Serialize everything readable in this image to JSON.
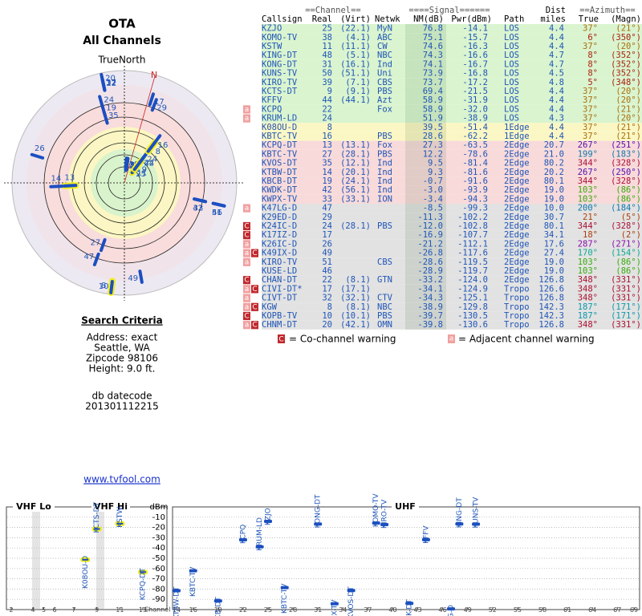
{
  "header": {
    "title": "OTA",
    "subtitle": "All Channels"
  },
  "polar": {
    "label": "TrueNorth",
    "north": "N",
    "nm_lim": [
      80,
      -45
    ]
  },
  "search": {
    "title": "Search Criteria",
    "lines": [
      "Address: exact",
      "Seattle, WA",
      "Zipcode 98106",
      "Height: 9.0 ft."
    ],
    "datecode_label": "db datecode",
    "datecode": "201301112215"
  },
  "link": "www.tvfool.com",
  "table": {
    "group_headers": {
      "channel": "==Channel==",
      "signal": "====Signal======",
      "dist": "Dist",
      "azimuth": "==Azimuth=="
    },
    "columns": {
      "callsign": "Callsign",
      "real": "Real",
      "virt": "(Virt)",
      "netwk": "Netwk",
      "nm": "NM(dB)",
      "pwr": "Pwr(dBm)",
      "path": "Path",
      "miles": "miles",
      "true": "True",
      "magn": "(Magn)"
    },
    "rows": [
      {
        "callsign": "KZJO",
        "real": 25,
        "virt": "(22.1)",
        "netwk": "MyN",
        "nm": 76.8,
        "pwr": -14.1,
        "path": "LOS",
        "miles": 4.4,
        "true": {
          "value": 37,
          "label": "37°"
        },
        "magn": "(21°)",
        "bg": "#d9f4cf"
      },
      {
        "callsign": "KOMO-TV",
        "real": 38,
        "virt": "(4.1)",
        "netwk": "ABC",
        "nm": 75.1,
        "pwr": -15.7,
        "path": "LOS",
        "miles": 4.4,
        "true": {
          "value": 6,
          "label": "6°"
        },
        "magn": "(350°)",
        "bg": "#d9f4cf"
      },
      {
        "callsign": "KSTW",
        "real": 11,
        "virt": "(11.1)",
        "netwk": "CW",
        "nm": 74.6,
        "pwr": -16.3,
        "path": "LOS",
        "miles": 4.4,
        "true": {
          "value": 37,
          "label": "37°"
        },
        "magn": "(20°)",
        "bg": "#d9f4cf"
      },
      {
        "callsign": "KING-DT",
        "real": 48,
        "virt": "(5.1)",
        "netwk": "NBC",
        "nm": 74.3,
        "pwr": -16.6,
        "path": "LOS",
        "miles": 4.7,
        "true": {
          "value": 8,
          "label": "8°"
        },
        "magn": "(352°)",
        "bg": "#d9f4cf"
      },
      {
        "callsign": "KONG-DT",
        "real": 31,
        "virt": "(16.1)",
        "netwk": "Ind",
        "nm": 74.1,
        "pwr": -16.7,
        "path": "LOS",
        "miles": 4.7,
        "true": {
          "value": 8,
          "label": "8°"
        },
        "magn": "(352°)",
        "bg": "#d9f4cf"
      },
      {
        "callsign": "KUNS-TV",
        "real": 50,
        "virt": "(51.1)",
        "netwk": "Uni",
        "nm": 73.9,
        "pwr": -16.8,
        "path": "LOS",
        "miles": 4.5,
        "true": {
          "value": 8,
          "label": "8°"
        },
        "magn": "(352°)",
        "bg": "#d9f4cf"
      },
      {
        "callsign": "KIRO-TV",
        "real": 39,
        "virt": "(7.1)",
        "netwk": "CBS",
        "nm": 73.7,
        "pwr": -17.2,
        "path": "LOS",
        "miles": 4.8,
        "true": {
          "value": 5,
          "label": "5°"
        },
        "magn": "(348°)",
        "bg": "#d9f4cf"
      },
      {
        "callsign": "KCTS-DT",
        "real": 9,
        "virt": "(9.1)",
        "netwk": "PBS",
        "nm": 69.4,
        "pwr": -21.5,
        "path": "LOS",
        "miles": 4.4,
        "true": {
          "value": 37,
          "label": "37°"
        },
        "magn": "(20°)",
        "bg": "#d9f4cf"
      },
      {
        "callsign": "KFFV",
        "real": 44,
        "virt": "(44.1)",
        "netwk": "Azt",
        "nm": 58.9,
        "pwr": -31.9,
        "path": "LOS",
        "miles": 4.4,
        "true": {
          "value": 37,
          "label": "37°"
        },
        "magn": "(20°)",
        "bg": "#d9f4cf"
      },
      {
        "callsign": "KCPQ",
        "real": 22,
        "netwk": "Fox",
        "nm": 58.9,
        "pwr": {
          "value": -32,
          "label": "-32.0"
        },
        "path": "LOS",
        "miles": 4.4,
        "true": {
          "value": 37,
          "label": "37°"
        },
        "magn": "(21°)",
        "bg": "#d9f4cf",
        "warn": [
          "a"
        ]
      },
      {
        "callsign": "KRUM-LD",
        "real": 24,
        "nm": 51.9,
        "pwr": -38.9,
        "path": "LOS",
        "miles": 4.3,
        "true": {
          "value": 37,
          "label": "37°"
        },
        "magn": "(20°)",
        "bg": "#d9f4cf",
        "warn": [
          "a"
        ]
      },
      {
        "callsign": "K08OU-D",
        "real": 8,
        "nm": 39.5,
        "pwr": -51.4,
        "path": "1Edge",
        "miles": 4.4,
        "true": {
          "value": 37,
          "label": "37°"
        },
        "magn": "(21°)",
        "bg": "#fbf7c4"
      },
      {
        "callsign": "KBTC-TV",
        "real": 16,
        "netwk": "PBS",
        "nm": 28.6,
        "pwr": -62.2,
        "path": "1Edge",
        "miles": 4.4,
        "true": {
          "value": 37,
          "label": "37°"
        },
        "magn": "(21°)",
        "bg": "#fbf7c4"
      },
      {
        "callsign": "KCPQ-DT",
        "real": 13,
        "virt": "(13.1)",
        "netwk": "Fox",
        "nm": 27.3,
        "pwr": -63.5,
        "path": "2Edge",
        "miles": 20.7,
        "true": {
          "value": 267,
          "label": "267°"
        },
        "magn": "(251°)",
        "bg": "#f8dada"
      },
      {
        "callsign": "KBTC-TV",
        "real": 27,
        "virt": "(28.1)",
        "netwk": "PBS",
        "nm": 12.2,
        "pwr": -78.6,
        "path": "2Edge",
        "miles": {
          "value": 21,
          "label": "21.0"
        },
        "true": {
          "value": 199,
          "label": "199°"
        },
        "magn": "(183°)",
        "bg": "#f8dada"
      },
      {
        "callsign": "KVOS-DT",
        "real": 35,
        "virt": "(12.1)",
        "netwk": "Ind",
        "nm": 9.5,
        "pwr": -81.4,
        "path": "2Edge",
        "miles": 80.2,
        "true": {
          "value": 344,
          "label": "344°"
        },
        "magn": "(328°)",
        "bg": "#f8dada"
      },
      {
        "callsign": "KTBW-DT",
        "real": 14,
        "virt": "(20.1)",
        "netwk": "Ind",
        "nm": 9.3,
        "pwr": -81.6,
        "path": "2Edge",
        "miles": 20.2,
        "true": {
          "value": 267,
          "label": "267°"
        },
        "magn": "(250°)",
        "bg": "#f8dada"
      },
      {
        "callsign": "KBCB-DT",
        "real": 19,
        "virt": "(24.1)",
        "netwk": "Ind",
        "nm": -0.7,
        "pwr": -91.6,
        "path": "2Edge",
        "miles": 80.1,
        "true": {
          "value": 344,
          "label": "344°"
        },
        "magn": "(328°)",
        "bg": "#f8dada"
      },
      {
        "callsign": "KWDK-DT",
        "real": 42,
        "virt": "(56.1)",
        "netwk": "Ind",
        "nm": {
          "value": -3,
          "label": "-3.0"
        },
        "pwr": -93.9,
        "path": "2Edge",
        "miles": {
          "value": 19,
          "label": "19.0"
        },
        "true": {
          "value": 103,
          "label": "103°"
        },
        "magn": "(86°)",
        "bg": "#f8dada"
      },
      {
        "callsign": "KWPX-TV",
        "real": 33,
        "virt": "(33.1)",
        "netwk": "ION",
        "nm": -3.4,
        "pwr": -94.3,
        "path": "2Edge",
        "miles": {
          "value": 19,
          "label": "19.0"
        },
        "true": {
          "value": 103,
          "label": "103°"
        },
        "magn": "(86°)",
        "bg": "#f8dada"
      },
      {
        "callsign": "K47LG-D",
        "real": 47,
        "nm": -8.5,
        "pwr": -99.3,
        "path": "2Edge",
        "miles": {
          "value": 10,
          "label": "10.0"
        },
        "true": {
          "value": 200,
          "label": "200°"
        },
        "magn": "(184°)",
        "bg": "#e2e2e2",
        "warn": [
          "a"
        ]
      },
      {
        "callsign": "K29ED-D",
        "real": 29,
        "nm": -11.3,
        "pwr": -102.2,
        "path": "2Edge",
        "miles": 30.7,
        "true": {
          "value": 21,
          "label": "21°"
        },
        "magn": "(5°)",
        "bg": "#e2e2e2"
      },
      {
        "callsign": "K24IC-D",
        "real": 24,
        "virt": "(28.1)",
        "netwk": "PBS",
        "nm": {
          "value": -12,
          "label": "-12.0"
        },
        "pwr": -102.8,
        "path": "2Edge",
        "miles": 80.1,
        "true": {
          "value": 344,
          "label": "344°"
        },
        "magn": "(328°)",
        "bg": "#e2e2e2",
        "warn": [
          "C"
        ]
      },
      {
        "callsign": "K17IZ-D",
        "real": 17,
        "nm": -16.9,
        "pwr": -107.7,
        "path": "2Edge",
        "miles": 34.1,
        "true": {
          "value": 18,
          "label": "18°"
        },
        "magn": "(2°)",
        "bg": "#e2e2e2",
        "warn": [
          "C"
        ]
      },
      {
        "callsign": "K26IC-D",
        "real": 26,
        "nm": -21.2,
        "pwr": -112.1,
        "path": "2Edge",
        "miles": 17.6,
        "true": {
          "value": 287,
          "label": "287°"
        },
        "magn": "(271°)",
        "bg": "#e2e2e2",
        "warn": [
          "a"
        ]
      },
      {
        "callsign": "K49IX-D",
        "real": 49,
        "nm": -26.8,
        "pwr": -117.6,
        "path": "2Edge",
        "miles": 27.4,
        "true": {
          "value": 170,
          "label": "170°"
        },
        "magn": "(154°)",
        "bg": "#e2e2e2",
        "warn": [
          "a",
          "C"
        ]
      },
      {
        "callsign": "KIRO-TV",
        "real": 51,
        "netwk": "CBS",
        "nm": -28.6,
        "pwr": -119.5,
        "path": "2Edge",
        "miles": {
          "value": 19,
          "label": "19.0"
        },
        "true": {
          "value": 103,
          "label": "103°"
        },
        "magn": "(86°)",
        "bg": "#e2e2e2",
        "warn": [
          "a"
        ]
      },
      {
        "callsign": "KUSE-LD",
        "real": 46,
        "nm": -28.9,
        "pwr": -119.7,
        "path": "2Edge",
        "miles": {
          "value": 19,
          "label": "19.0"
        },
        "true": {
          "value": 103,
          "label": "103°"
        },
        "magn": "(86°)",
        "bg": "#e2e2e2"
      },
      {
        "callsign": "CHAN-DT",
        "real": 22,
        "virt": "(8.1)",
        "netwk": "GTN",
        "nm": -33.2,
        "pwr": {
          "value": -124,
          "label": "-124.0"
        },
        "path": "2Edge",
        "miles": 126.8,
        "true": {
          "value": 348,
          "label": "348°"
        },
        "magn": "(331°)",
        "bg": "#e2e2e2",
        "warn": [
          "C"
        ]
      },
      {
        "callsign": "CIVI-DT*",
        "real": 17,
        "virt": "(17.1)",
        "nm": -34.1,
        "pwr": -124.9,
        "path": "Tropo",
        "miles": 126.6,
        "true": {
          "value": 348,
          "label": "348°"
        },
        "magn": "(331°)",
        "bg": "#e2e2e2",
        "warn": [
          "a",
          "C"
        ]
      },
      {
        "callsign": "CIVT-DT",
        "real": 32,
        "virt": "(32.1)",
        "netwk": "CTV",
        "nm": -34.3,
        "pwr": -125.1,
        "path": "Tropo",
        "miles": 126.8,
        "true": {
          "value": 348,
          "label": "348°"
        },
        "magn": "(331°)",
        "bg": "#e2e2e2",
        "warn": [
          "a"
        ]
      },
      {
        "callsign": "KGW",
        "real": 8,
        "virt": "(8.1)",
        "netwk": "NBC",
        "nm": -38.9,
        "pwr": -129.8,
        "path": "Tropo",
        "miles": 142.3,
        "true": {
          "value": 187,
          "label": "187°"
        },
        "magn": "(171°)",
        "bg": "#e2e2e2",
        "warn": [
          "a",
          "C"
        ]
      },
      {
        "callsign": "KOPB-TV",
        "real": 10,
        "virt": "(10.1)",
        "netwk": "PBS",
        "nm": -39.7,
        "pwr": -130.5,
        "path": "Tropo",
        "miles": 142.3,
        "true": {
          "value": 187,
          "label": "187°"
        },
        "magn": "(171°)",
        "bg": "#e2e2e2",
        "warn": [
          "C"
        ]
      },
      {
        "callsign": "CHNM-DT",
        "real": 20,
        "virt": "(42.1)",
        "netwk": "OMN",
        "nm": -39.8,
        "pwr": -130.6,
        "path": "Tropo",
        "miles": 126.8,
        "true": {
          "value": 348,
          "label": "348°"
        },
        "magn": "(331°)",
        "bg": "#e2e2e2",
        "warn": [
          "a",
          "C"
        ]
      }
    ]
  },
  "legend": {
    "co": {
      "icon": "C",
      "text": "= Co-channel warning"
    },
    "adj": {
      "icon": "a",
      "text": "= Adjacent channel warning"
    }
  },
  "spectrum": {
    "labels": {
      "vhf_lo": "VHF Lo",
      "vhf_hi": "VHF Hi",
      "uhf": "UHF",
      "unit": "dBm",
      "channel": "Channel"
    },
    "ylim": [
      0,
      -100
    ],
    "yticks": [
      -10,
      -20,
      -30,
      -40,
      -50,
      -60,
      -70,
      -80,
      -90
    ],
    "vhf_lo_lim": [
      2,
      6
    ],
    "vhf_hi_lim": [
      7,
      13
    ],
    "uhf_lim": [
      14,
      69
    ],
    "vhf_ticks": [
      2,
      4,
      5,
      6,
      7,
      9,
      11,
      13
    ],
    "uhf_ticks": [
      14,
      16,
      19,
      22,
      25,
      28,
      31,
      34,
      37,
      40,
      43,
      46,
      49,
      52,
      55,
      58,
      61,
      64,
      67,
      69
    ],
    "color": "#1b4fc2",
    "highlight": "#f3ee1e",
    "grid": true
  }
}
